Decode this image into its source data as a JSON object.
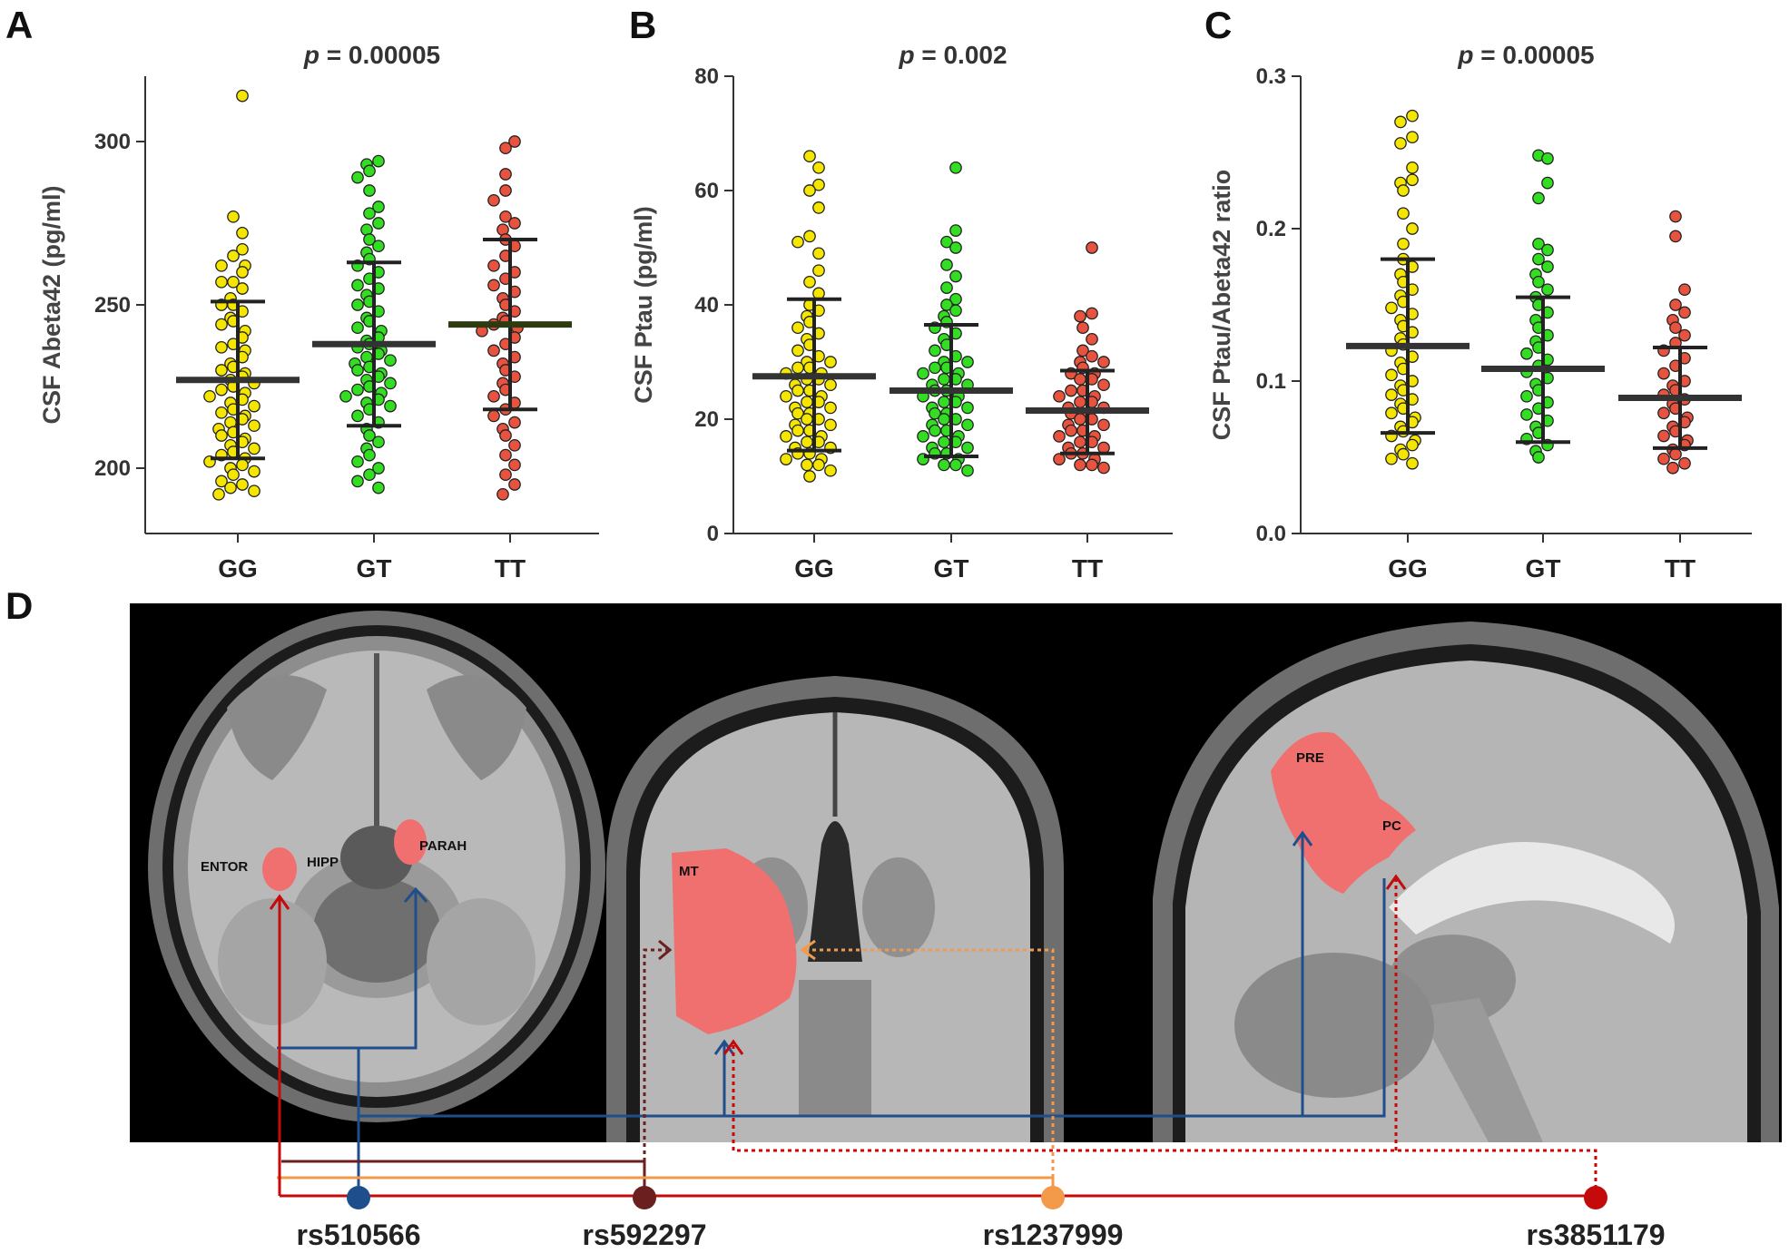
{
  "panel_labels": [
    "A",
    "B",
    "C",
    "D"
  ],
  "chart_data": [
    {
      "panel": "A",
      "type": "scatter",
      "title": "p = 0.00005",
      "title_italic": "p",
      "title_rest": " = 0.00005",
      "ylabel": "CSF Abeta42 (pg/ml)",
      "xlabel": "",
      "categories": [
        "GG",
        "GT",
        "TT"
      ],
      "ylim": [
        180,
        320
      ],
      "yticks": [
        200,
        250,
        300
      ],
      "ytick_labels": [
        "200",
        "250",
        "300"
      ],
      "colors": [
        "#f5e600",
        "#33dd22",
        "#e8533f"
      ],
      "stats": [
        {
          "mean": 227,
          "sd_low": 203,
          "sd_high": 251
        },
        {
          "mean": 238,
          "sd_low": 213,
          "sd_high": 263
        },
        {
          "mean": 244,
          "sd_low": 218,
          "sd_high": 270
        }
      ],
      "points": [
        [
          314,
          277,
          272,
          267,
          265,
          262,
          262,
          260,
          257,
          257,
          255,
          252,
          250,
          250,
          248,
          246,
          245,
          244,
          242,
          240,
          238,
          237,
          236,
          234,
          232,
          231,
          230,
          229,
          228,
          227,
          226,
          225,
          224,
          223,
          222,
          221,
          220,
          219,
          218,
          217,
          216,
          215,
          214,
          213,
          212,
          211,
          210,
          209,
          208,
          207,
          206,
          205,
          204,
          203,
          202,
          201,
          200,
          199,
          198,
          196,
          195,
          194,
          193,
          192
        ],
        [
          294,
          293,
          291,
          289,
          285,
          280,
          278,
          275,
          273,
          270,
          268,
          266,
          264,
          262,
          260,
          258,
          256,
          255,
          253,
          251,
          250,
          248,
          246,
          245,
          243,
          242,
          240,
          239,
          238,
          237,
          236,
          235,
          234,
          233,
          232,
          231,
          230,
          229,
          228,
          227,
          226,
          225,
          224,
          223,
          222,
          221,
          220,
          219,
          218,
          216,
          214,
          212,
          210,
          208,
          206,
          204,
          202,
          200,
          198,
          196,
          194
        ],
        [
          300,
          298,
          290,
          285,
          282,
          277,
          275,
          273,
          270,
          268,
          265,
          262,
          260,
          258,
          256,
          254,
          252,
          250,
          248,
          246,
          245,
          244,
          243,
          242,
          240,
          238,
          236,
          234,
          232,
          230,
          228,
          226,
          224,
          222,
          220,
          218,
          216,
          214,
          212,
          210,
          207,
          204,
          201,
          198,
          195,
          192
        ]
      ]
    },
    {
      "panel": "B",
      "type": "scatter",
      "title": "p = 0.002",
      "title_italic": "p",
      "title_rest": " = 0.002",
      "ylabel": "CSF Ptau (pg/ml)",
      "xlabel": "",
      "categories": [
        "GG",
        "GT",
        "TT"
      ],
      "ylim": [
        0,
        80
      ],
      "yticks": [
        0,
        20,
        40,
        60,
        80
      ],
      "ytick_labels": [
        "0",
        "20",
        "40",
        "60",
        "80"
      ],
      "colors": [
        "#f5e600",
        "#33dd22",
        "#e8533f"
      ],
      "stats": [
        {
          "mean": 27.5,
          "sd_low": 14.5,
          "sd_high": 41
        },
        {
          "mean": 25,
          "sd_low": 13.5,
          "sd_high": 36.5
        },
        {
          "mean": 21.5,
          "sd_low": 14,
          "sd_high": 28.5
        }
      ],
      "points": [
        [
          66,
          64,
          61,
          60,
          57,
          52,
          51,
          49,
          46,
          44,
          42,
          40,
          39,
          38,
          37,
          36,
          35,
          34,
          33,
          32,
          31,
          30,
          30,
          29,
          29,
          28,
          28,
          27,
          27,
          26,
          26,
          25,
          25,
          24,
          24,
          23,
          23,
          22,
          22,
          21,
          21,
          20,
          20,
          19,
          19,
          18,
          18,
          17,
          17,
          16,
          16,
          15,
          15,
          14,
          14,
          13,
          13,
          12,
          12,
          11,
          10
        ],
        [
          64,
          53,
          51,
          50,
          47,
          45,
          43,
          41,
          40,
          39,
          38,
          37,
          36,
          35,
          34,
          33,
          32,
          31,
          30,
          30,
          29,
          29,
          28,
          28,
          27,
          27,
          26,
          26,
          25,
          25,
          24,
          24,
          23,
          23,
          22,
          22,
          21,
          21,
          20,
          20,
          19,
          19,
          18,
          18,
          17,
          17,
          16,
          16,
          15,
          15,
          14,
          14,
          13,
          13,
          12,
          12,
          11
        ],
        [
          50,
          38.5,
          38,
          36,
          34,
          32,
          31,
          30,
          30,
          29,
          28,
          28,
          27,
          27,
          26,
          25,
          25,
          24,
          24,
          23,
          23,
          22,
          22,
          21,
          21,
          20,
          20,
          19,
          19,
          18,
          18,
          17,
          17,
          16,
          16,
          15,
          15,
          14,
          14,
          13,
          13,
          12,
          12,
          11.5
        ]
      ]
    },
    {
      "panel": "C",
      "type": "scatter",
      "title": "p = 0.00005",
      "title_italic": "p",
      "title_rest": " = 0.00005",
      "ylabel": "CSF Ptau/Abeta42 ratio",
      "xlabel": "",
      "categories": [
        "GG",
        "GT",
        "TT"
      ],
      "ylim": [
        0,
        0.3
      ],
      "yticks": [
        0,
        0.1,
        0.2,
        0.3
      ],
      "ytick_labels": [
        "0.0",
        "0.1",
        "0.2",
        "0.3"
      ],
      "colors": [
        "#f5e600",
        "#33dd22",
        "#e8533f"
      ],
      "stats": [
        {
          "mean": 0.123,
          "sd_low": 0.066,
          "sd_high": 0.18
        },
        {
          "mean": 0.108,
          "sd_low": 0.06,
          "sd_high": 0.155
        },
        {
          "mean": 0.089,
          "sd_low": 0.056,
          "sd_high": 0.122
        }
      ],
      "points": [
        [
          0.274,
          0.27,
          0.26,
          0.256,
          0.24,
          0.232,
          0.23,
          0.225,
          0.21,
          0.2,
          0.19,
          0.18,
          0.175,
          0.17,
          0.165,
          0.16,
          0.156,
          0.152,
          0.148,
          0.144,
          0.14,
          0.136,
          0.132,
          0.128,
          0.124,
          0.12,
          0.116,
          0.112,
          0.108,
          0.104,
          0.1,
          0.097,
          0.094,
          0.091,
          0.088,
          0.085,
          0.082,
          0.079,
          0.076,
          0.073,
          0.07,
          0.067,
          0.064,
          0.061,
          0.058,
          0.055,
          0.052,
          0.049,
          0.046
        ],
        [
          0.248,
          0.246,
          0.23,
          0.22,
          0.19,
          0.186,
          0.18,
          0.175,
          0.17,
          0.165,
          0.16,
          0.155,
          0.15,
          0.145,
          0.14,
          0.135,
          0.13,
          0.126,
          0.122,
          0.118,
          0.114,
          0.11,
          0.106,
          0.102,
          0.098,
          0.094,
          0.09,
          0.086,
          0.082,
          0.078,
          0.074,
          0.07,
          0.066,
          0.062,
          0.058,
          0.054,
          0.05
        ],
        [
          0.208,
          0.195,
          0.16,
          0.15,
          0.145,
          0.14,
          0.135,
          0.13,
          0.125,
          0.12,
          0.115,
          0.11,
          0.105,
          0.1,
          0.097,
          0.094,
          0.091,
          0.088,
          0.085,
          0.082,
          0.079,
          0.076,
          0.073,
          0.07,
          0.067,
          0.064,
          0.061,
          0.058,
          0.055,
          0.052,
          0.049,
          0.046,
          0.043
        ]
      ]
    }
  ],
  "brain_panel": {
    "regions": {
      "entor": "ENTOR",
      "hipp": "HIPP",
      "parah": "PARAH",
      "mt": "MT",
      "pre": "PRE",
      "pc": "PC"
    },
    "snps": [
      {
        "name": "rs510566",
        "color": "#1f4e8c"
      },
      {
        "name": "rs592297",
        "color": "#6b1f1f"
      },
      {
        "name": "rs1237999",
        "color": "#f39a4a"
      },
      {
        "name": "rs3851179",
        "color": "#c40a0a"
      }
    ],
    "highlight_color": "#f07070",
    "background_color": "#000000"
  }
}
